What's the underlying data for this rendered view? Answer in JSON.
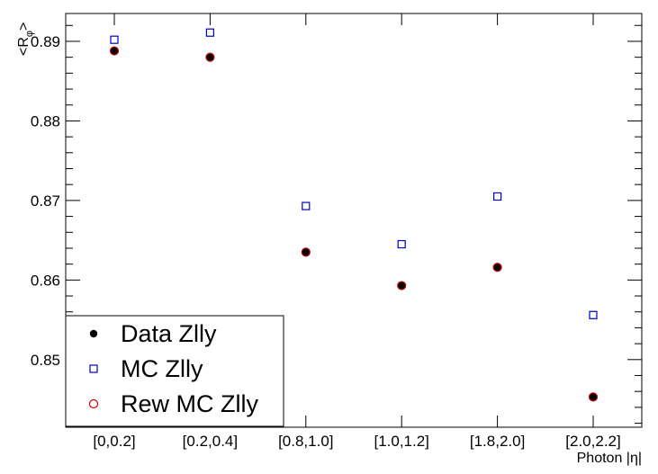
{
  "chart_data": {
    "type": "scatter",
    "categories": [
      "[0,0.2]",
      "[0.2,0.4]",
      "[0.8,1.0]",
      "[1.0,1.2]",
      "[1.8,2.0]",
      "[2.0,2.2]"
    ],
    "xlabel": "Photon |η|",
    "ylabel_main": "<R",
    "ylabel_sub": "φ",
    "ylabel_end": ">",
    "ylim": [
      0.8415,
      0.8935
    ],
    "y_ticks": [
      0.85,
      0.86,
      0.87,
      0.88,
      0.89
    ],
    "y_tick_labels": [
      "0.85",
      "0.86",
      "0.87",
      "0.88",
      "0.89"
    ],
    "grid": false,
    "legend_position": "bottom-left",
    "series": [
      {
        "name": "Data Zlly",
        "marker": "filled-circle",
        "color": "#000000",
        "values": [
          0.8888,
          0.888,
          0.8635,
          0.8593,
          0.8616,
          0.8453
        ]
      },
      {
        "name": "MC Zlly",
        "marker": "open-square",
        "color": "#0000cc",
        "values": [
          0.8902,
          0.8911,
          0.8693,
          0.8645,
          0.8705,
          0.8556
        ]
      },
      {
        "name": "Rew MC Zlly",
        "marker": "open-circle",
        "color": "#cc0000",
        "values": [
          0.8888,
          0.888,
          0.8635,
          0.8593,
          0.8616,
          0.8453
        ]
      }
    ]
  }
}
